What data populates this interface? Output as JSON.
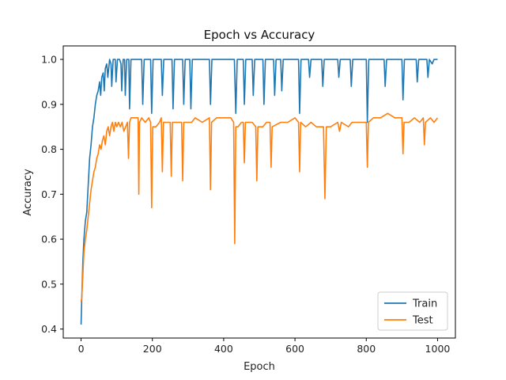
{
  "chart_data": {
    "type": "line",
    "title": "Epoch vs Accuracy",
    "xlabel": "Epoch",
    "ylabel": "Accuracy",
    "xlim": [
      -50,
      1050
    ],
    "ylim": [
      0.38,
      1.03
    ],
    "xticks": [
      0,
      200,
      400,
      600,
      800,
      1000
    ],
    "yticks": [
      0.4,
      0.5,
      0.6,
      0.7,
      0.8,
      0.9,
      1.0
    ],
    "xtick_labels": [
      "0",
      "200",
      "400",
      "600",
      "800",
      "1000"
    ],
    "ytick_labels": [
      "0.4",
      "0.5",
      "0.6",
      "0.7",
      "0.8",
      "0.9",
      "1.0"
    ],
    "grid": false,
    "legend_position": "lower-right",
    "series": [
      {
        "name": "Train",
        "color": "#1f77b4",
        "points": [
          [
            0,
            0.41
          ],
          [
            2,
            0.47
          ],
          [
            5,
            0.55
          ],
          [
            8,
            0.6
          ],
          [
            12,
            0.64
          ],
          [
            16,
            0.66
          ],
          [
            20,
            0.72
          ],
          [
            24,
            0.78
          ],
          [
            28,
            0.81
          ],
          [
            32,
            0.85
          ],
          [
            36,
            0.87
          ],
          [
            40,
            0.9
          ],
          [
            44,
            0.92
          ],
          [
            48,
            0.93
          ],
          [
            52,
            0.95
          ],
          [
            55,
            0.92
          ],
          [
            58,
            0.96
          ],
          [
            62,
            0.97
          ],
          [
            65,
            0.93
          ],
          [
            68,
            0.98
          ],
          [
            72,
            0.99
          ],
          [
            75,
            0.96
          ],
          [
            80,
            1.0
          ],
          [
            84,
            0.99
          ],
          [
            86,
            0.94
          ],
          [
            90,
            1.0
          ],
          [
            96,
            1.0
          ],
          [
            98,
            0.95
          ],
          [
            102,
            1.0
          ],
          [
            108,
            1.0
          ],
          [
            112,
            0.99
          ],
          [
            114,
            0.93
          ],
          [
            118,
            1.0
          ],
          [
            122,
            1.0
          ],
          [
            124,
            0.92
          ],
          [
            128,
            1.0
          ],
          [
            134,
            1.0
          ],
          [
            136,
            0.89
          ],
          [
            140,
            1.0
          ],
          [
            170,
            1.0
          ],
          [
            173,
            0.9
          ],
          [
            177,
            1.0
          ],
          [
            195,
            1.0
          ],
          [
            198,
            0.88
          ],
          [
            202,
            1.0
          ],
          [
            225,
            1.0
          ],
          [
            228,
            0.92
          ],
          [
            232,
            1.0
          ],
          [
            255,
            1.0
          ],
          [
            258,
            0.89
          ],
          [
            262,
            1.0
          ],
          [
            285,
            1.0
          ],
          [
            288,
            0.9
          ],
          [
            292,
            1.0
          ],
          [
            305,
            1.0
          ],
          [
            308,
            0.89
          ],
          [
            312,
            1.0
          ],
          [
            360,
            1.0
          ],
          [
            363,
            0.9
          ],
          [
            367,
            1.0
          ],
          [
            430,
            1.0
          ],
          [
            434,
            0.88
          ],
          [
            438,
            1.0
          ],
          [
            455,
            1.0
          ],
          [
            458,
            0.9
          ],
          [
            462,
            1.0
          ],
          [
            480,
            1.0
          ],
          [
            483,
            0.92
          ],
          [
            487,
            1.0
          ],
          [
            510,
            1.0
          ],
          [
            513,
            0.9
          ],
          [
            517,
            1.0
          ],
          [
            540,
            1.0
          ],
          [
            543,
            0.92
          ],
          [
            547,
            1.0
          ],
          [
            560,
            1.0
          ],
          [
            563,
            0.93
          ],
          [
            567,
            1.0
          ],
          [
            610,
            1.0
          ],
          [
            613,
            0.88
          ],
          [
            617,
            1.0
          ],
          [
            638,
            1.0
          ],
          [
            641,
            0.96
          ],
          [
            645,
            1.0
          ],
          [
            675,
            1.0
          ],
          [
            678,
            0.94
          ],
          [
            682,
            1.0
          ],
          [
            720,
            1.0
          ],
          [
            723,
            0.96
          ],
          [
            727,
            1.0
          ],
          [
            755,
            1.0
          ],
          [
            758,
            0.94
          ],
          [
            762,
            1.0
          ],
          [
            800,
            1.0
          ],
          [
            803,
            0.86
          ],
          [
            807,
            1.0
          ],
          [
            850,
            1.0
          ],
          [
            853,
            0.94
          ],
          [
            857,
            1.0
          ],
          [
            900,
            1.0
          ],
          [
            903,
            0.91
          ],
          [
            907,
            1.0
          ],
          [
            940,
            1.0
          ],
          [
            943,
            0.95
          ],
          [
            947,
            1.0
          ],
          [
            970,
            1.0
          ],
          [
            973,
            0.96
          ],
          [
            977,
            1.0
          ],
          [
            985,
            0.99
          ],
          [
            990,
            1.0
          ],
          [
            1000,
            1.0
          ]
        ]
      },
      {
        "name": "Test",
        "color": "#ff7f0e",
        "points": [
          [
            0,
            0.46
          ],
          [
            2,
            0.47
          ],
          [
            5,
            0.52
          ],
          [
            8,
            0.57
          ],
          [
            12,
            0.6
          ],
          [
            16,
            0.62
          ],
          [
            20,
            0.65
          ],
          [
            24,
            0.68
          ],
          [
            28,
            0.71
          ],
          [
            32,
            0.73
          ],
          [
            36,
            0.75
          ],
          [
            40,
            0.76
          ],
          [
            44,
            0.78
          ],
          [
            48,
            0.79
          ],
          [
            52,
            0.81
          ],
          [
            56,
            0.8
          ],
          [
            60,
            0.82
          ],
          [
            64,
            0.83
          ],
          [
            68,
            0.81
          ],
          [
            72,
            0.84
          ],
          [
            76,
            0.85
          ],
          [
            80,
            0.83
          ],
          [
            84,
            0.85
          ],
          [
            88,
            0.86
          ],
          [
            92,
            0.84
          ],
          [
            96,
            0.86
          ],
          [
            100,
            0.85
          ],
          [
            105,
            0.86
          ],
          [
            110,
            0.85
          ],
          [
            115,
            0.86
          ],
          [
            120,
            0.84
          ],
          [
            125,
            0.85
          ],
          [
            130,
            0.86
          ],
          [
            133,
            0.78
          ],
          [
            136,
            0.86
          ],
          [
            140,
            0.87
          ],
          [
            150,
            0.87
          ],
          [
            160,
            0.87
          ],
          [
            162,
            0.7
          ],
          [
            164,
            0.86
          ],
          [
            170,
            0.87
          ],
          [
            180,
            0.86
          ],
          [
            190,
            0.87
          ],
          [
            195,
            0.86
          ],
          [
            198,
            0.67
          ],
          [
            201,
            0.85
          ],
          [
            210,
            0.85
          ],
          [
            220,
            0.86
          ],
          [
            225,
            0.87
          ],
          [
            228,
            0.75
          ],
          [
            231,
            0.86
          ],
          [
            240,
            0.86
          ],
          [
            250,
            0.86
          ],
          [
            253,
            0.74
          ],
          [
            256,
            0.86
          ],
          [
            265,
            0.86
          ],
          [
            275,
            0.86
          ],
          [
            282,
            0.86
          ],
          [
            285,
            0.73
          ],
          [
            288,
            0.86
          ],
          [
            300,
            0.86
          ],
          [
            310,
            0.86
          ],
          [
            320,
            0.87
          ],
          [
            340,
            0.86
          ],
          [
            360,
            0.87
          ],
          [
            363,
            0.71
          ],
          [
            366,
            0.86
          ],
          [
            380,
            0.87
          ],
          [
            400,
            0.87
          ],
          [
            420,
            0.87
          ],
          [
            428,
            0.86
          ],
          [
            431,
            0.59
          ],
          [
            434,
            0.85
          ],
          [
            440,
            0.85
          ],
          [
            450,
            0.86
          ],
          [
            455,
            0.86
          ],
          [
            458,
            0.77
          ],
          [
            461,
            0.86
          ],
          [
            480,
            0.86
          ],
          [
            490,
            0.85
          ],
          [
            493,
            0.73
          ],
          [
            496,
            0.85
          ],
          [
            510,
            0.85
          ],
          [
            520,
            0.86
          ],
          [
            530,
            0.86
          ],
          [
            533,
            0.76
          ],
          [
            536,
            0.85
          ],
          [
            560,
            0.86
          ],
          [
            580,
            0.86
          ],
          [
            600,
            0.87
          ],
          [
            610,
            0.86
          ],
          [
            613,
            0.75
          ],
          [
            616,
            0.86
          ],
          [
            630,
            0.85
          ],
          [
            645,
            0.86
          ],
          [
            660,
            0.85
          ],
          [
            680,
            0.85
          ],
          [
            684,
            0.69
          ],
          [
            688,
            0.85
          ],
          [
            700,
            0.85
          ],
          [
            720,
            0.86
          ],
          [
            725,
            0.84
          ],
          [
            730,
            0.86
          ],
          [
            750,
            0.85
          ],
          [
            760,
            0.86
          ],
          [
            780,
            0.86
          ],
          [
            800,
            0.86
          ],
          [
            803,
            0.76
          ],
          [
            806,
            0.86
          ],
          [
            820,
            0.87
          ],
          [
            840,
            0.87
          ],
          [
            860,
            0.88
          ],
          [
            880,
            0.87
          ],
          [
            900,
            0.87
          ],
          [
            903,
            0.79
          ],
          [
            906,
            0.86
          ],
          [
            920,
            0.86
          ],
          [
            935,
            0.87
          ],
          [
            950,
            0.86
          ],
          [
            960,
            0.87
          ],
          [
            963,
            0.81
          ],
          [
            966,
            0.86
          ],
          [
            980,
            0.87
          ],
          [
            990,
            0.86
          ],
          [
            1000,
            0.87
          ]
        ]
      }
    ]
  }
}
